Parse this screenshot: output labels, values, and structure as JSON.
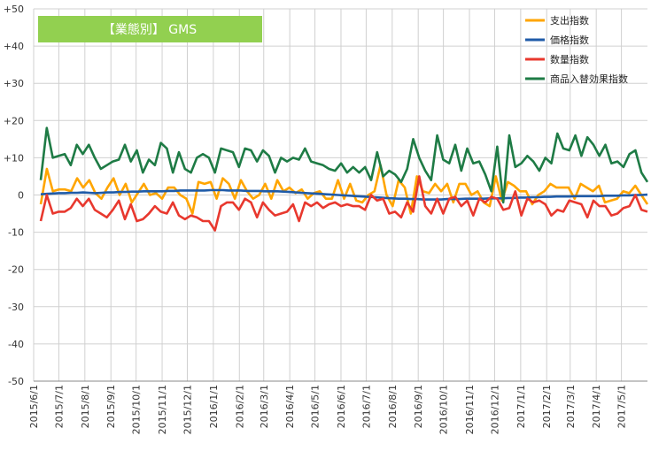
{
  "chart_data": {
    "type": "line",
    "title": "【業態別】 GMS",
    "title_bg_color": "#92D050",
    "ylim": [
      -50,
      50
    ],
    "yticks": [
      {
        "value": 50,
        "label": "+50"
      },
      {
        "value": 40,
        "label": "+40"
      },
      {
        "value": 30,
        "label": "+30"
      },
      {
        "value": 20,
        "label": "+20"
      },
      {
        "value": 10,
        "label": "+10"
      },
      {
        "value": 0,
        "label": "0"
      },
      {
        "value": -10,
        "label": "-10"
      },
      {
        "value": -20,
        "label": "-20"
      },
      {
        "value": -30,
        "label": "-30"
      },
      {
        "value": -40,
        "label": "-40"
      },
      {
        "value": -50,
        "label": "-50"
      }
    ],
    "x_start": "2015/6/1",
    "x_end": "2017/6/1",
    "x_tick_labels": [
      "2015/6/1",
      "2015/7/1",
      "2015/8/1",
      "2015/9/1",
      "2015/10/1",
      "2015/11/1",
      "2015/12/1",
      "2016/1/1",
      "2016/2/1",
      "2016/3/1",
      "2016/4/1",
      "2016/5/1",
      "2016/6/1",
      "2016/7/1",
      "2016/8/1",
      "2016/9/1",
      "2016/10/1",
      "2016/11/1",
      "2016/12/1",
      "2017/1/1",
      "2017/2/1",
      "2017/3/1",
      "2017/4/1",
      "2017/5/1"
    ],
    "grid": true,
    "legend_position": "top-right",
    "series": [
      {
        "name": "支出指数",
        "color": "#FFA500",
        "values": [
          -2.5,
          7,
          1,
          1.5,
          1.5,
          1,
          4.5,
          2,
          4,
          0.5,
          -1,
          2,
          4.5,
          0,
          3,
          -2,
          0.5,
          3,
          0,
          0.5,
          -1,
          2,
          2,
          0,
          -1,
          -5,
          3.5,
          3,
          3.5,
          -1,
          4.5,
          3,
          -1,
          4,
          1,
          -1,
          0,
          3,
          -1,
          4,
          1,
          2,
          0.5,
          1.5,
          -1,
          0.5,
          1,
          -1,
          -1,
          4,
          -1,
          3,
          -1.5,
          -2,
          0,
          1,
          8,
          0,
          -3,
          4,
          2,
          -5,
          5,
          1,
          0.5,
          3,
          1,
          3,
          -2,
          3,
          3,
          0,
          1,
          -2,
          -3,
          5,
          -1.5,
          3.5,
          2.5,
          1,
          1,
          -2.5,
          0,
          1,
          3,
          2,
          2,
          2,
          -1,
          3,
          2,
          1,
          2.5,
          -2,
          -1.5,
          -1,
          1,
          0.5,
          2.5,
          0,
          -2.5
        ]
      },
      {
        "name": "価格指数",
        "color": "#1F5BA8",
        "values": [
          0.2,
          0.3,
          0.4,
          0.5,
          0.5,
          0.6,
          0.6,
          0.7,
          0.6,
          0.5,
          0.6,
          0.7,
          0.7,
          0.8,
          0.8,
          0.9,
          0.9,
          1,
          1,
          1,
          1,
          1.1,
          1.1,
          1.2,
          1.2,
          1.2,
          1.2,
          1.2,
          1.3,
          1.3,
          1.3,
          1.2,
          1.2,
          1.2,
          1.1,
          1.1,
          1.1,
          1,
          1,
          1,
          0.9,
          0.8,
          0.7,
          0.6,
          0.5,
          0.4,
          0.3,
          0.2,
          0.1,
          0,
          -0.1,
          -0.2,
          -0.3,
          -0.4,
          -0.5,
          -0.6,
          -0.7,
          -0.8,
          -0.9,
          -1,
          -1,
          -1.1,
          -1.1,
          -1.2,
          -1.2,
          -1.2,
          -1.2,
          -1.1,
          -1.1,
          -1.1,
          -1,
          -1,
          -1,
          -1,
          -0.9,
          -0.9,
          -0.9,
          -0.8,
          -0.8,
          -0.7,
          -0.7,
          -0.6,
          -0.6,
          -0.5,
          -0.5,
          -0.4,
          -0.4,
          -0.4,
          -0.3,
          -0.3,
          -0.3,
          -0.3,
          -0.3,
          -0.2,
          -0.2,
          -0.2,
          -0.1,
          -0.1,
          0,
          0,
          0.1
        ]
      },
      {
        "name": "数量指数",
        "color": "#E8382E",
        "values": [
          -7,
          0,
          -5,
          -4.5,
          -4.5,
          -3.5,
          -1,
          -3,
          -1,
          -4,
          -5,
          -6,
          -4,
          -1.5,
          -6.5,
          -2.5,
          -7,
          -6.5,
          -5,
          -3,
          -4.5,
          -5,
          -2,
          -5.5,
          -6.5,
          -5.5,
          -6,
          -7,
          -7,
          -9.5,
          -3,
          -2,
          -2,
          -4,
          -1,
          -2,
          -6,
          -2,
          -4,
          -5.5,
          -5,
          -4.5,
          -2.5,
          -7,
          -2,
          -3,
          -2,
          -3.5,
          -2.5,
          -2,
          -3,
          -2.5,
          -3,
          -3,
          -4,
          0,
          -1.5,
          -1,
          -5,
          -4.5,
          -6,
          -2,
          -4.5,
          5,
          -3,
          -5,
          -1,
          -5,
          -1,
          -0.5,
          -3,
          -1.5,
          -5.5,
          -1,
          -2,
          -0.5,
          -1,
          -4,
          -3.5,
          1,
          -5.5,
          -1,
          -2,
          -1.5,
          -2.5,
          -5.5,
          -4,
          -4.5,
          -1.5,
          -2,
          -2.5,
          -6,
          -1.5,
          -3,
          -3,
          -5.5,
          -5,
          -3.5,
          -3,
          0,
          -4,
          -4.5
        ]
      },
      {
        "name": "商品入替効果指数",
        "color": "#1E7B45",
        "values": [
          4,
          18,
          10,
          10.5,
          11,
          8,
          13.5,
          11,
          13.5,
          10,
          7,
          8,
          9,
          9.5,
          13.5,
          9,
          12,
          6,
          9.5,
          8,
          14,
          12.5,
          6,
          11.5,
          7,
          6,
          10,
          11,
          10,
          6,
          12.5,
          12,
          11.5,
          7.5,
          12.5,
          12,
          9,
          12,
          10.5,
          6,
          10,
          9,
          10,
          9.5,
          12.5,
          9,
          8.5,
          8,
          7,
          6.5,
          8.5,
          6,
          7.5,
          6,
          7.5,
          4,
          11.5,
          5,
          6.5,
          5.5,
          3.5,
          7,
          15,
          10,
          6.5,
          4,
          16,
          9.5,
          8.5,
          13.5,
          6.5,
          12.5,
          8.5,
          9,
          5.5,
          1,
          13,
          -2,
          16,
          7.5,
          8.5,
          10.5,
          9,
          6.5,
          10,
          8.5,
          16.5,
          12.5,
          12,
          16,
          10.5,
          15.5,
          13.5,
          10.5,
          13.5,
          8.5,
          9,
          7.5,
          11,
          12,
          6,
          3.5
        ]
      }
    ]
  }
}
